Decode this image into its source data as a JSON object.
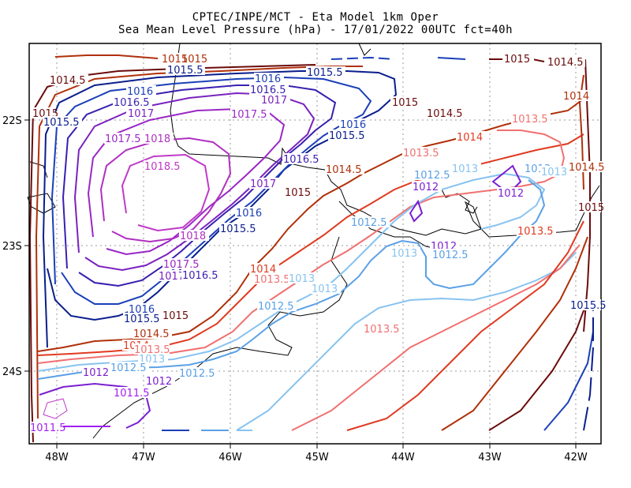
{
  "header": {
    "title_line1": "CPTEC/INPE/MCT -  Eta Model 1km Oper",
    "title_line2": "Sea Mean Level Pressure (hPa) - 17/01/2022 00UTC fct=40h"
  },
  "axes": {
    "x_ticks": [
      "48W",
      "47W",
      "46W",
      "45W",
      "44W",
      "43W",
      "42W"
    ],
    "y_ticks": [
      "22S",
      "23S",
      "24S"
    ]
  },
  "contours": {
    "label_1011_5": "1011.5",
    "label_1012": "1012",
    "label_1012_5": "1012.5",
    "label_1013": "1013",
    "label_1013_5": "1013.5",
    "label_1014": "1014",
    "label_1014_5": "1014.5",
    "label_1015": "1015",
    "label_1015_5": "1015.5",
    "label_1016": "1016",
    "label_1016_5": "1016.5",
    "label_1017": "1017",
    "label_1017_5": "1017.5",
    "label_1018": "1018",
    "label_1018_5": "1018.5"
  },
  "colors": {
    "c1011_5": "#a020f0",
    "c1012": "#7b1fd0",
    "c1012_5": "#5aa0e6",
    "c1013": "#87c3f0",
    "c1013_5": "#f07070",
    "c1014": "#e03a20",
    "c1014_5": "#b0300a",
    "c1015": "#6b0b0b",
    "c1015_5": "#1b3fb8",
    "c1016": "#0a1e8c",
    "c1016_5": "#3a1fb0",
    "c1017": "#7a22c0",
    "c1017_5": "#9a27c7",
    "c1018": "#b030c0",
    "c1018_5": "#c039c8"
  }
}
